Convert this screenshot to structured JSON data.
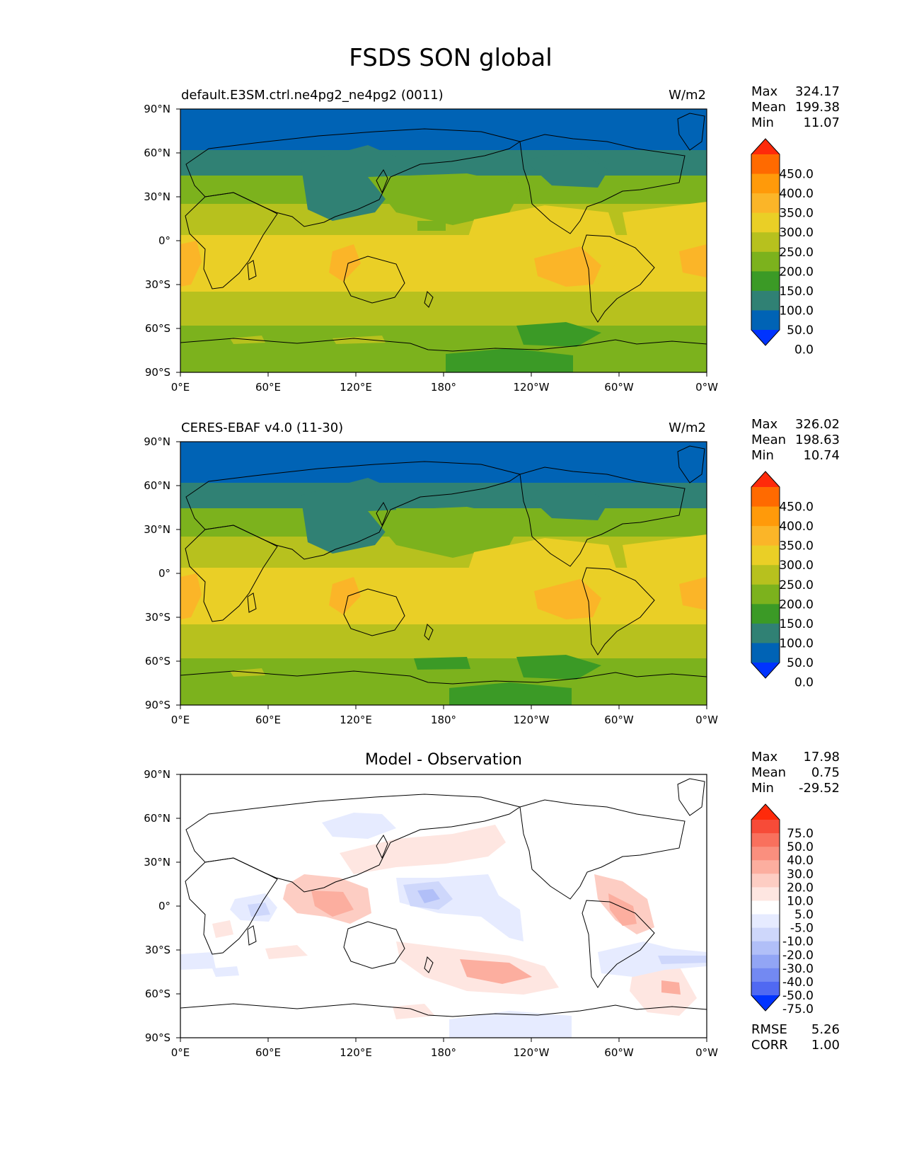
{
  "title": "FSDS SON global",
  "lat_ticks": [
    "90°N",
    "60°N",
    "30°N",
    "0°",
    "30°S",
    "60°S",
    "90°S"
  ],
  "lon_ticks": [
    "0°E",
    "60°E",
    "120°E",
    "180°",
    "120°W",
    "60°W",
    "0°W"
  ],
  "stat_labels": {
    "max": "Max",
    "mean": "Mean",
    "min": "Min",
    "rmse": "RMSE",
    "corr": "CORR"
  },
  "panels": [
    {
      "id": "test",
      "left_title": "default.E3SM.ctrl.ne4pg2_ne4pg2 (0011)",
      "center_title": "",
      "units": "W/m2",
      "stats": {
        "max": "324.17",
        "mean": "199.38",
        "min": "11.07"
      }
    },
    {
      "id": "reference",
      "left_title": "CERES-EBAF v4.0 (11-30)",
      "center_title": "",
      "units": "W/m2",
      "stats": {
        "max": "326.02",
        "mean": "198.63",
        "min": "10.74"
      }
    },
    {
      "id": "difference",
      "left_title": "",
      "center_title": "Model - Observation",
      "units": "",
      "stats": {
        "max": "17.98",
        "mean": "0.75",
        "min": "-29.52"
      },
      "rmse": "5.26",
      "corr": "1.00"
    }
  ],
  "colorbars": {
    "field": {
      "labels": [
        "450.0",
        "400.0",
        "350.0",
        "300.0",
        "250.0",
        "200.0",
        "150.0",
        "100.0",
        "50.0",
        "0.0"
      ],
      "colors": [
        "#ff2a0a",
        "#ff6a00",
        "#ff9a0a",
        "#fbb528",
        "#eacf26",
        "#b7c11e",
        "#7cb21d",
        "#3b9a26",
        "#308174",
        "#0063b5",
        "#0033ff"
      ]
    },
    "diff": {
      "labels": [
        "75.0",
        "50.0",
        "40.0",
        "30.0",
        "20.0",
        "10.0",
        "5.0",
        "-5.0",
        "-10.0",
        "-20.0",
        "-30.0",
        "-40.0",
        "-50.0",
        "-75.0"
      ],
      "colors": [
        "#ff2a0a",
        "#f74b38",
        "#f9705d",
        "#fa8f7e",
        "#fcae9f",
        "#fdcdc3",
        "#fee6e1",
        "#ffffff",
        "#e6ebff",
        "#ced7fb",
        "#b1bff8",
        "#92a5f5",
        "#7389f2",
        "#5069f2",
        "#0033ff"
      ]
    }
  }
}
